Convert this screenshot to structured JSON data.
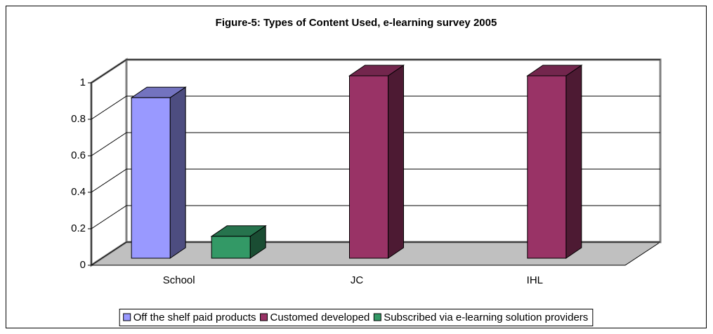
{
  "chart_data": {
    "type": "bar3d",
    "title": "Figure-5: Types of Content Used, e-learning survey 2005",
    "categories": [
      "School",
      "JC",
      "IHL"
    ],
    "series": [
      {
        "name": "Off the shelf paid products",
        "color": "#9999ff",
        "values": [
          0.88,
          null,
          null
        ]
      },
      {
        "name": "Customed developed",
        "color": "#993366",
        "values": [
          null,
          1,
          1
        ]
      },
      {
        "name": "Subscribed via e-learning solution providers",
        "color": "#339966",
        "values": [
          0.12,
          null,
          null
        ]
      }
    ],
    "ylim": [
      0,
      1
    ],
    "yticks": [
      0,
      0.2,
      0.4,
      0.6,
      0.8,
      1
    ],
    "grid": true,
    "legend": "bottom"
  }
}
